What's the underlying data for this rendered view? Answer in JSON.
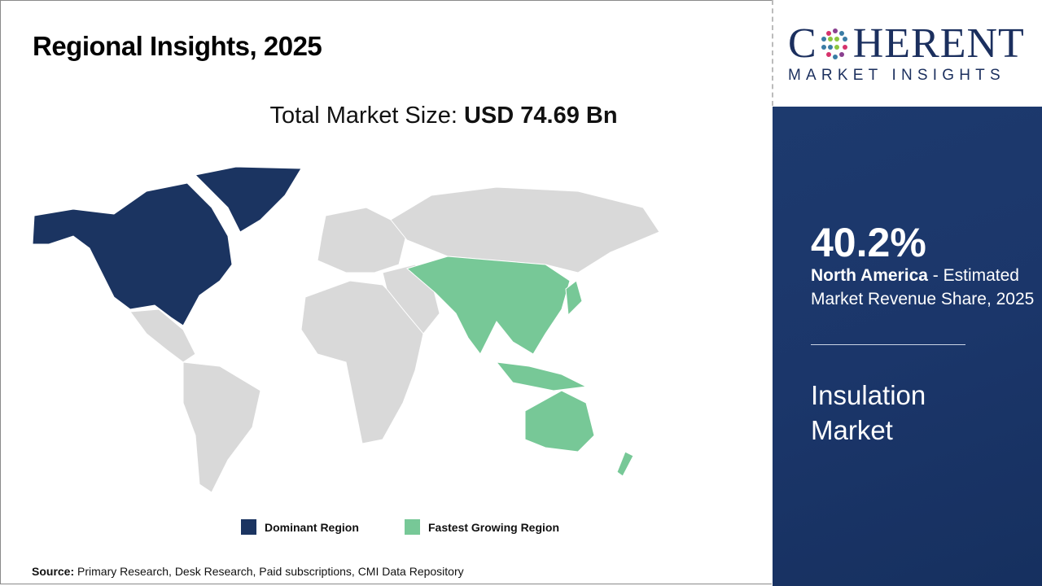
{
  "header": {
    "title": "Regional Insights, 2025"
  },
  "market_size": {
    "label": "Total Market Size: ",
    "value": "USD 74.69 Bn"
  },
  "map": {
    "colors": {
      "dominant": "#1b3461",
      "fastest": "#77c897",
      "other": "#d9d9d9"
    },
    "dominant_region": "North America",
    "fastest_growing_region": "Asia Pacific"
  },
  "legend": [
    {
      "label": "Dominant Region",
      "color": "#1b3461"
    },
    {
      "label": "Fastest Growing Region",
      "color": "#77c897"
    }
  ],
  "source": {
    "label": "Source:",
    "text": " Primary Research, Desk Research, Paid subscriptions, CMI Data Repository"
  },
  "logo": {
    "text_pre": "C",
    "text_post": "HERENT",
    "subtitle": "MARKET INSIGHTS"
  },
  "panel": {
    "share": "40.2%",
    "region": "North America",
    "desc": " - Estimated Market Revenue Share, 2025",
    "market": "Insulation Market"
  }
}
